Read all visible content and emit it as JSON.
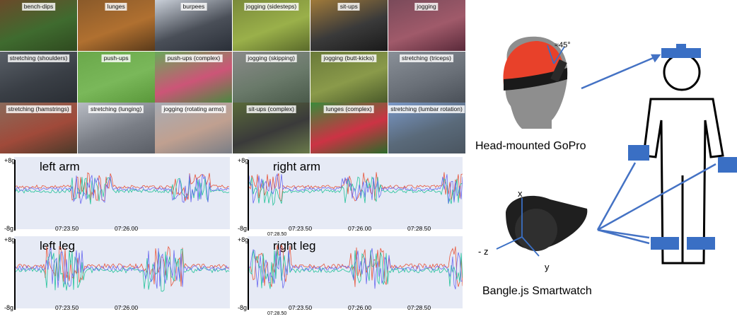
{
  "tiles": [
    {
      "label": "bench-dips",
      "colors": [
        "#6a4a2a",
        "#3f6b2f",
        "#2f4a1f"
      ]
    },
    {
      "label": "lunges",
      "colors": [
        "#8a5a2a",
        "#b07030",
        "#5a3a1a"
      ]
    },
    {
      "label": "burpees",
      "colors": [
        "#c9cfd8",
        "#4a4f58",
        "#2a2f38"
      ]
    },
    {
      "label": "jogging (sidesteps)",
      "colors": [
        "#7a8a3a",
        "#9ab04a",
        "#5a6a2a"
      ]
    },
    {
      "label": "sit-ups",
      "colors": [
        "#a07a3a",
        "#3a3a3a",
        "#1a1a1a"
      ]
    },
    {
      "label": "jogging",
      "colors": [
        "#7a4a5a",
        "#a05a6a",
        "#5a2a3a"
      ]
    },
    {
      "label": "stretching (shoulders)",
      "colors": [
        "#5a6068",
        "#3a3f46",
        "#2a2e34"
      ]
    },
    {
      "label": "push-ups",
      "colors": [
        "#6aa84a",
        "#7ab85a",
        "#5a983a"
      ]
    },
    {
      "label": "push-ups (complex)",
      "colors": [
        "#6aa85a",
        "#cc5577",
        "#4a8840"
      ]
    },
    {
      "label": "jogging (skipping)",
      "colors": [
        "#8a8a8a",
        "#6a7a6a",
        "#4a5a4a"
      ]
    },
    {
      "label": "jogging (butt-kicks)",
      "colors": [
        "#6a7a3a",
        "#8a9a4a",
        "#4a5a2a"
      ]
    },
    {
      "label": "stretching (triceps)",
      "colors": [
        "#8a9098",
        "#6a7078",
        "#4a5058"
      ]
    },
    {
      "label": "stretching (hamstrings)",
      "colors": [
        "#8a6a5a",
        "#a04a3a",
        "#4a3a2a"
      ]
    },
    {
      "label": "stretching (lunging)",
      "colors": [
        "#b8bcc4",
        "#7a7e86",
        "#5a5e66"
      ]
    },
    {
      "label": "jogging (rotating arms)",
      "colors": [
        "#a8acb4",
        "#c0a090",
        "#7a7e86"
      ]
    },
    {
      "label": "sit-ups (complex)",
      "colors": [
        "#5a6a3a",
        "#3a3a3a",
        "#6a7a4a"
      ]
    },
    {
      "label": "lunges (complex)",
      "colors": [
        "#3a8a3a",
        "#cc3344",
        "#2a6a2a"
      ]
    },
    {
      "label": "stretching (lumbar rotation)",
      "colors": [
        "#7a98c8",
        "#5a6a7a",
        "#4a5560"
      ]
    }
  ],
  "plots": [
    {
      "title": "left arm",
      "ymax": "+8g",
      "ymin": "-8g",
      "ticks": [
        "07:23.50",
        "07:26.00"
      ],
      "extra_tick": "",
      "seed": 3
    },
    {
      "title": "right arm",
      "ymax": "+8g",
      "ymin": "-8g",
      "ticks": [
        "07:23.50",
        "07:26.00",
        "07:28.50"
      ],
      "extra_tick": "07:28.50",
      "seed": 7
    },
    {
      "title": "left leg",
      "ymax": "+8g",
      "ymin": "-8g",
      "ticks": [
        "07:23.50",
        "07:26.00"
      ],
      "extra_tick": "",
      "seed": 11
    },
    {
      "title": "right leg",
      "ymax": "+8g",
      "ymin": "-8g",
      "ticks": [
        "07:23.50",
        "07:26.00",
        "07:28.50"
      ],
      "extra_tick": "07:28.50",
      "seed": 19
    }
  ],
  "series_colors": {
    "x": "#e8553a",
    "y": "#22c39a",
    "z": "#6a6af0"
  },
  "diagram": {
    "angle_label": "≈45°",
    "gopro_caption": "Head-mounted GoPro",
    "watch_caption": "Bangle.js Smartwatch",
    "axis_x": "x",
    "axis_y": "y",
    "axis_z": "- z",
    "sensor_color": "#3a6fc4",
    "arrow_color": "#4472c4",
    "head_color": "#e8412a"
  }
}
